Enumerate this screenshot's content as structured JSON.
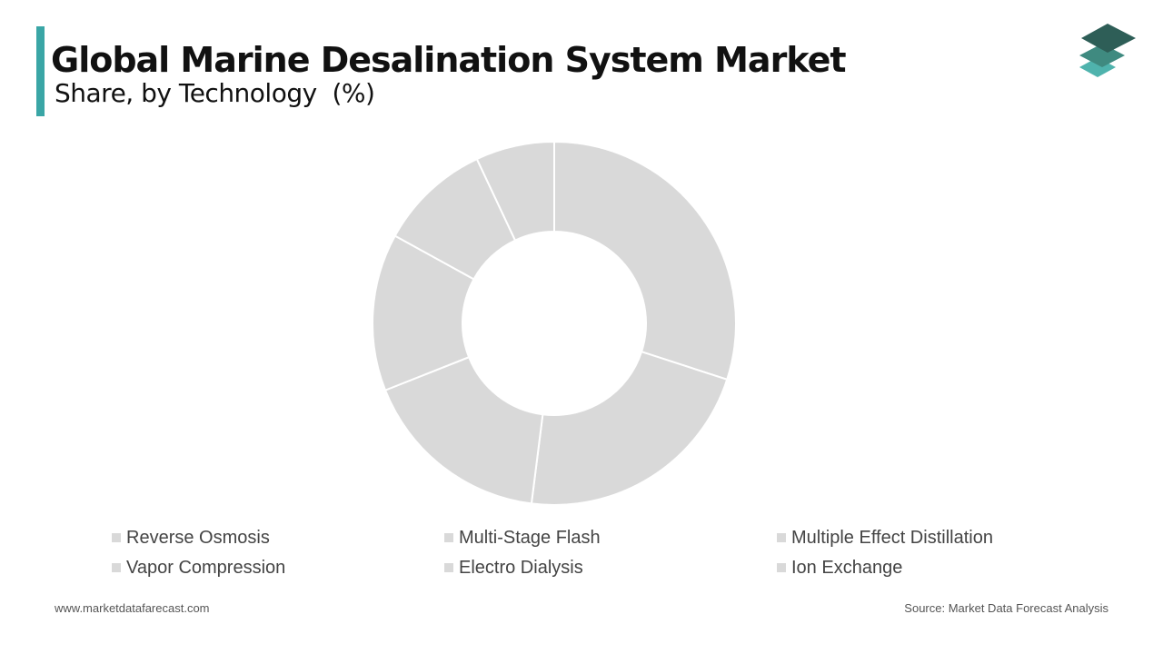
{
  "header": {
    "title": "Global Marine Desalination System Market",
    "subtitle": "Share, by Technology  (%)"
  },
  "footer": {
    "website": "www.marketdatafarecast.com",
    "source": "Source: Market Data Forecast Analysis"
  },
  "colors": {
    "accent": "#3aa6a6",
    "slice": "#d9d9d9",
    "slice_border": "#ffffff",
    "logo_dark": "#2e5e57",
    "logo_mid": "#3f8a80",
    "logo_light": "#4fb3ad"
  },
  "chart_data": {
    "type": "pie",
    "style": "donut",
    "categories": [
      "Reverse Osmosis",
      "Multi-Stage Flash",
      "Multiple Effect Distillation",
      "Vapor Compression",
      "Electro Dialysis",
      "Ion Exchange"
    ],
    "values": [
      30,
      22,
      17,
      14,
      10,
      7
    ],
    "legend_position": "bottom"
  }
}
